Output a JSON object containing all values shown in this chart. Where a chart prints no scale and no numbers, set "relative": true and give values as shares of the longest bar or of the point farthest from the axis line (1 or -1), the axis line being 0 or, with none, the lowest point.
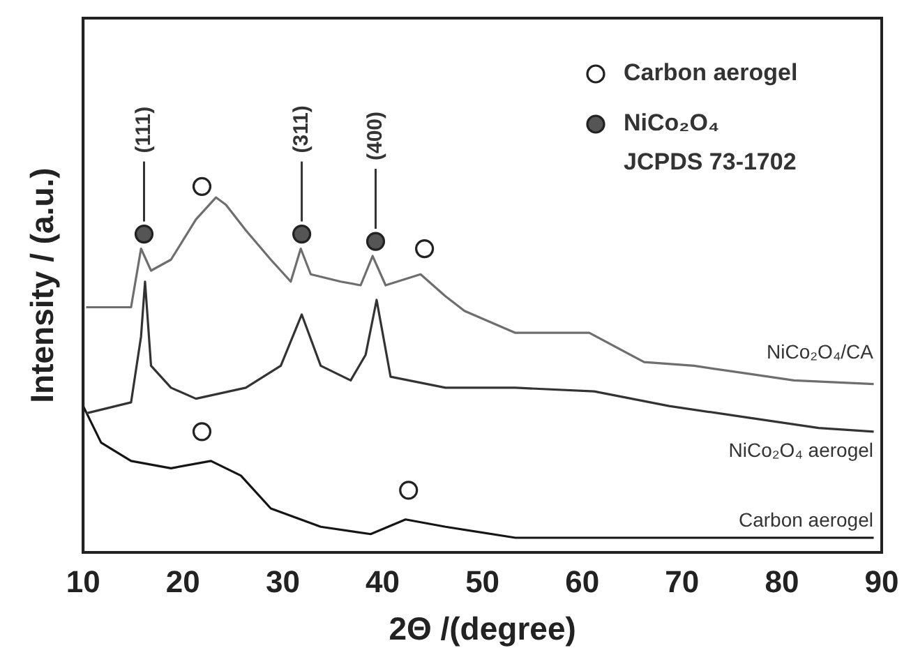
{
  "chart_data": {
    "type": "line",
    "xlabel": "2Θ /(degree)",
    "ylabel": "Intensity / (a.u.)",
    "relative": true,
    "xlim": [
      10,
      90
    ],
    "xticks": [
      10,
      20,
      30,
      40,
      50,
      60,
      70,
      80,
      90
    ],
    "grid": false,
    "legend": "top right",
    "marker": "none",
    "annotations": [
      "(111)",
      "(311)",
      "(400)"
    ],
    "series": [
      {
        "name": "NiCo₂O₄/CA",
        "color": "#6e6e6e",
        "x": [
          10.3,
          14.8,
          15.8,
          16.8,
          18.8,
          21.3,
          23.3,
          24.3,
          26.3,
          28.8,
          30.8,
          31.8,
          32.8,
          35.8,
          37.8,
          39.0,
          40.3,
          43.8,
          46.3,
          48.2,
          53.3,
          56.2,
          60.7,
          66.2,
          71.2,
          76.2,
          81.2,
          89.2
        ],
        "values": [
          0.67,
          0.67,
          0.83,
          0.77,
          0.8,
          0.91,
          0.97,
          0.95,
          0.88,
          0.8,
          0.74,
          0.83,
          0.76,
          0.74,
          0.73,
          0.81,
          0.73,
          0.76,
          0.7,
          0.66,
          0.6,
          0.6,
          0.6,
          0.52,
          0.51,
          0.49,
          0.47,
          0.46
        ]
      },
      {
        "name": "NiCo₂O₄ aerogel",
        "color": "#333333",
        "x": [
          10.3,
          14.8,
          15.8,
          16.2,
          16.8,
          18.8,
          21.3,
          26.3,
          29.8,
          31.9,
          33.8,
          36.8,
          38.3,
          39.4,
          40.8,
          46.3,
          53.3,
          61.2,
          68.7,
          76.2,
          83.7,
          89.2
        ],
        "values": [
          0.38,
          0.41,
          0.59,
          0.74,
          0.51,
          0.45,
          0.42,
          0.45,
          0.51,
          0.65,
          0.51,
          0.47,
          0.54,
          0.69,
          0.48,
          0.45,
          0.45,
          0.44,
          0.4,
          0.37,
          0.34,
          0.33
        ]
      },
      {
        "name": "Carbon aerogel",
        "color": "#151515",
        "x": [
          10.0,
          11.8,
          14.8,
          18.8,
          22.8,
          25.8,
          28.8,
          33.8,
          38.8,
          42.3,
          46.3,
          53.3,
          71.2,
          89.2
        ],
        "values": [
          0.4,
          0.3,
          0.25,
          0.23,
          0.25,
          0.21,
          0.12,
          0.07,
          0.05,
          0.09,
          0.07,
          0.04,
          0.04,
          0.04
        ]
      },
      {
        "type": "scatter",
        "name": "Carbon aerogel",
        "marker": "circle",
        "color": "#ffffff",
        "x": [
          21.9,
          44.2,
          21.9,
          42.6
        ],
        "values": [
          1.0,
          0.83,
          0.33,
          0.17
        ]
      },
      {
        "type": "scatter",
        "name": "NiCo₂O₄\nJCPDS 73-1702",
        "marker": "circle",
        "color": "#555555",
        "x": [
          16.1,
          31.9,
          39.3
        ],
        "values": [
          0.87,
          0.87,
          0.85
        ]
      }
    ]
  }
}
